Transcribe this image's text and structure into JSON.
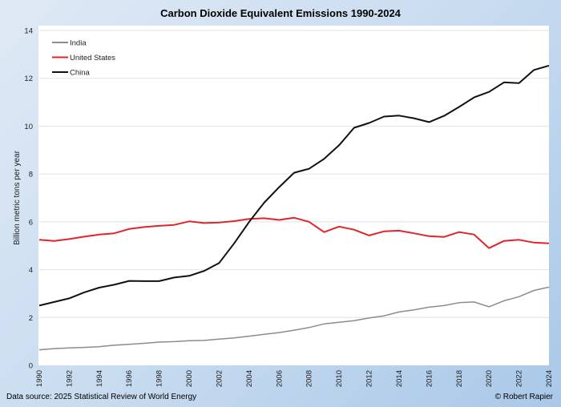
{
  "chart_data": {
    "type": "line",
    "title": "Carbon Dioxide Equivalent Emissions 1990-2024",
    "xlabel": "",
    "ylabel": "Billion metric tons per year",
    "ylim": [
      0,
      14
    ],
    "yticks": [
      0,
      2,
      4,
      6,
      8,
      10,
      12,
      14
    ],
    "xlim": [
      1990,
      2024
    ],
    "xticks": [
      1990,
      1992,
      1994,
      1996,
      1998,
      2000,
      2002,
      2004,
      2006,
      2008,
      2010,
      2012,
      2014,
      2016,
      2018,
      2020,
      2022,
      2024
    ],
    "grid": "horizontal",
    "legend": "top-left",
    "x": [
      1990,
      1991,
      1992,
      1993,
      1994,
      1995,
      1996,
      1997,
      1998,
      1999,
      2000,
      2001,
      2002,
      2003,
      2004,
      2005,
      2006,
      2007,
      2008,
      2009,
      2010,
      2011,
      2012,
      2013,
      2014,
      2015,
      2016,
      2017,
      2018,
      2019,
      2020,
      2021,
      2022,
      2023,
      2024
    ],
    "series": [
      {
        "name": "India",
        "color": "#8c8c8c",
        "values": [
          0.65,
          0.7,
          0.73,
          0.75,
          0.78,
          0.84,
          0.88,
          0.92,
          0.97,
          0.99,
          1.03,
          1.04,
          1.1,
          1.15,
          1.22,
          1.3,
          1.37,
          1.47,
          1.58,
          1.73,
          1.8,
          1.87,
          1.98,
          2.07,
          2.23,
          2.32,
          2.43,
          2.5,
          2.62,
          2.65,
          2.45,
          2.7,
          2.87,
          3.13,
          3.27
        ]
      },
      {
        "name": "United States",
        "color": "#e0242b",
        "values": [
          5.25,
          5.2,
          5.28,
          5.38,
          5.47,
          5.52,
          5.7,
          5.78,
          5.83,
          5.87,
          6.02,
          5.95,
          5.97,
          6.03,
          6.12,
          6.15,
          6.08,
          6.17,
          6.0,
          5.57,
          5.8,
          5.67,
          5.43,
          5.6,
          5.63,
          5.52,
          5.4,
          5.37,
          5.57,
          5.47,
          4.9,
          5.2,
          5.25,
          5.13,
          5.1
        ]
      },
      {
        "name": "China",
        "color": "#111111",
        "values": [
          2.5,
          2.65,
          2.8,
          3.05,
          3.25,
          3.37,
          3.53,
          3.52,
          3.52,
          3.67,
          3.74,
          3.95,
          4.28,
          5.1,
          6.0,
          6.8,
          7.45,
          8.05,
          8.22,
          8.63,
          9.2,
          9.93,
          10.13,
          10.4,
          10.44,
          10.33,
          10.17,
          10.43,
          10.8,
          11.2,
          11.43,
          11.83,
          11.8,
          12.35,
          12.53
        ]
      }
    ]
  },
  "footer": {
    "source": "Data source: 2025 Statistical Review of World Energy",
    "credit": "© Robert Rapier"
  }
}
